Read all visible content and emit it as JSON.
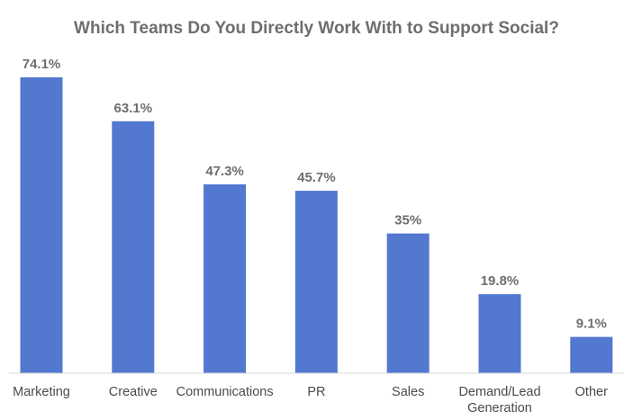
{
  "chart_data": {
    "type": "bar",
    "title": "Which Teams Do You Directly Work With to Support Social?",
    "categories": [
      "Marketing",
      "Creative",
      "Communications",
      "PR",
      "Sales",
      "Demand/Lead Generation",
      "Other"
    ],
    "category_lines": [
      [
        "Marketing"
      ],
      [
        "Creative"
      ],
      [
        "Communications"
      ],
      [
        "PR"
      ],
      [
        "Sales"
      ],
      [
        "Demand/Lead",
        "Generation"
      ],
      [
        "Other"
      ]
    ],
    "values": [
      74.1,
      63.1,
      47.3,
      45.7,
      35,
      19.8,
      9.1
    ],
    "value_labels": [
      "74.1%",
      "63.1%",
      "47.3%",
      "45.7%",
      "35%",
      "19.8%",
      "9.1%"
    ],
    "xlabel": "",
    "ylabel": "",
    "ylim": [
      0,
      74.1
    ],
    "grid": false,
    "bar_color": "#5278cf",
    "axis_color": "#d9d9d9",
    "label_color": "#6e6e6e"
  }
}
